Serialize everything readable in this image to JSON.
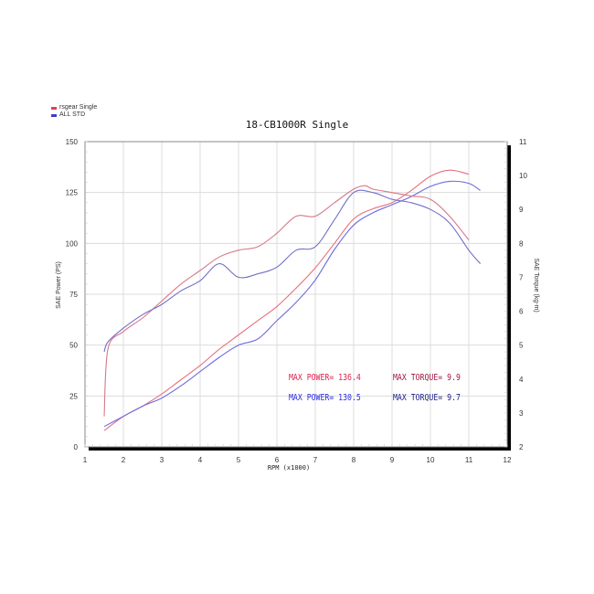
{
  "chart_data": {
    "type": "line",
    "title": "18-CB1000R Single",
    "xlabel": "RPM (x1000)",
    "ylabel": "SAE Power (PS)",
    "ylabel_right": "SAE Torque (kg-m)",
    "xlim": [
      1,
      12
    ],
    "ylim": [
      0,
      150
    ],
    "ylim_right": [
      2,
      11
    ],
    "xticks": [
      1,
      2,
      3,
      4,
      5,
      6,
      7,
      8,
      9,
      10,
      11,
      12
    ],
    "yticks": [
      0,
      25,
      50,
      75,
      100,
      125,
      150
    ],
    "yticks_right": [
      2,
      3,
      4,
      5,
      6,
      7,
      8,
      9,
      10,
      11
    ],
    "grid": true,
    "legend_position": "top-left, outside plot",
    "legend": [
      {
        "label": "rsgear Single",
        "color": "#e0405a"
      },
      {
        "label": "ALL STD",
        "color": "#3c3ccf"
      }
    ],
    "series": [
      {
        "name": "rsgear Single - Power (PS)",
        "axis": "left",
        "color": "#e8707e",
        "x": [
          1.5,
          2,
          2.5,
          3,
          3.5,
          4,
          4.5,
          5,
          5.5,
          6,
          6.5,
          7,
          7.5,
          8,
          8.5,
          9,
          9.5,
          10,
          10.5,
          11
        ],
        "values": [
          8,
          15,
          20,
          26,
          33,
          40,
          48,
          55,
          62,
          69,
          78,
          88,
          100,
          112,
          117,
          120,
          126,
          133,
          136,
          134
        ]
      },
      {
        "name": "ALL STD - Power (PS)",
        "axis": "left",
        "color": "#6c6ce0",
        "x": [
          1.5,
          2,
          2.5,
          3,
          3.5,
          4,
          4.5,
          5,
          5.5,
          6,
          6.5,
          7,
          7.5,
          8,
          8.5,
          9,
          9.5,
          10,
          10.5,
          11,
          11.3
        ],
        "values": [
          10,
          15,
          20,
          24,
          30,
          37,
          44,
          50,
          53,
          62,
          71,
          82,
          97,
          109,
          115,
          119,
          123,
          128,
          130.5,
          129.5,
          126
        ]
      },
      {
        "name": "rsgear Single - Torque (kg-m)",
        "axis": "right",
        "color": "#d87888",
        "x": [
          1.5,
          1.6,
          2,
          2.5,
          3,
          3.5,
          4,
          4.5,
          5,
          5.5,
          6,
          6.5,
          7,
          7.5,
          8,
          8.3,
          8.5,
          9,
          9.5,
          10,
          10.5,
          11
        ],
        "values": [
          2.9,
          4.9,
          5.4,
          5.8,
          6.3,
          6.8,
          7.2,
          7.6,
          7.8,
          7.9,
          8.3,
          8.8,
          8.8,
          9.2,
          9.6,
          9.7,
          9.6,
          9.5,
          9.4,
          9.3,
          8.8,
          8.1
        ]
      },
      {
        "name": "ALL STD - Torque (kg-m)",
        "axis": "right",
        "color": "#7070c8",
        "x": [
          1.5,
          1.6,
          2,
          2.5,
          3,
          3.5,
          4,
          4.5,
          5,
          5.5,
          6,
          6.5,
          7,
          7.5,
          8,
          8.5,
          9,
          9.5,
          10,
          10.5,
          11,
          11.3
        ],
        "values": [
          4.8,
          5.1,
          5.5,
          5.9,
          6.2,
          6.6,
          6.9,
          7.4,
          7.0,
          7.1,
          7.3,
          7.8,
          7.9,
          8.7,
          9.5,
          9.5,
          9.3,
          9.2,
          9.0,
          8.6,
          7.8,
          7.4
        ]
      }
    ],
    "annotations": [
      {
        "text": "MAX POWER= 136.4",
        "color": "#e0204a"
      },
      {
        "text": "MAX TORQUE= 9.9",
        "color": "#a01840"
      },
      {
        "text": "MAX POWER= 130.5",
        "color": "#2a2ae0"
      },
      {
        "text": "MAX TORQUE= 9.7",
        "color": "#20208a"
      }
    ]
  },
  "legend": {
    "items": [
      {
        "label": "rsgear Single",
        "color": "#e0405a"
      },
      {
        "label": "ALL STD",
        "color": "#3c3ccf"
      }
    ]
  },
  "title": "18-CB1000R Single"
}
